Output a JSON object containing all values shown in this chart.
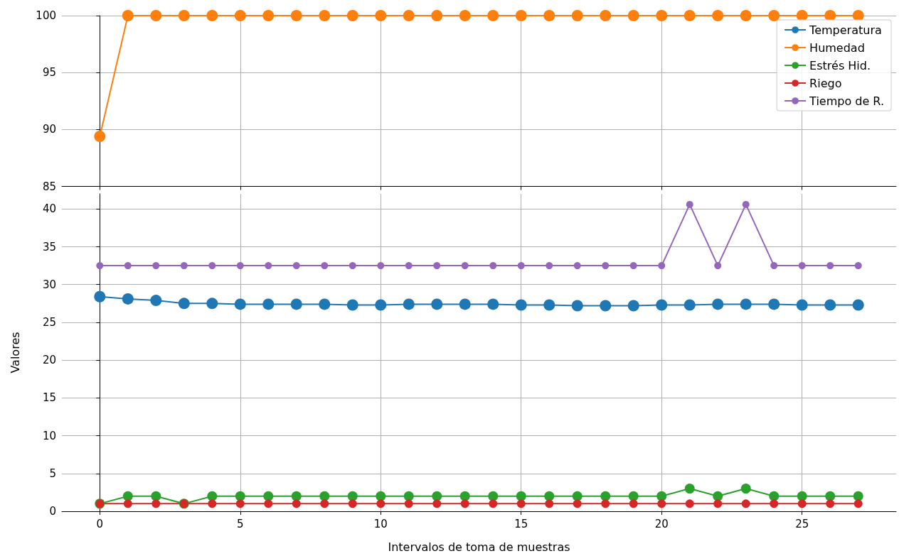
{
  "chart_data": [
    {
      "type": "line",
      "x": [
        0,
        1,
        2,
        3,
        4,
        5,
        6,
        7,
        8,
        9,
        10,
        11,
        12,
        13,
        14,
        15,
        16,
        17,
        18,
        19,
        20,
        21,
        22,
        23,
        24,
        25,
        26,
        27
      ],
      "xlim": [
        -1.35,
        28.35
      ],
      "xticks": [
        0,
        5,
        10,
        15,
        20,
        25
      ],
      "ylim": [
        85,
        100
      ],
      "yticks": [
        85,
        90,
        95,
        100
      ],
      "tick_labels": "y",
      "grid": true,
      "legend": "top right",
      "marker": "circle",
      "series": [
        {
          "name": "Temperatura",
          "color": "#1f77b4",
          "values": [
            null,
            null,
            null,
            null,
            null,
            null,
            null,
            null,
            null,
            null,
            null,
            null,
            null,
            null,
            null,
            null,
            null,
            null,
            null,
            null,
            null,
            null,
            null,
            null,
            null,
            null,
            null,
            null
          ]
        },
        {
          "name": "Humedad",
          "color": "#ff7f0e",
          "values": [
            89.4,
            100,
            100,
            100,
            100,
            100,
            100,
            100,
            100,
            100,
            100,
            100,
            100,
            100,
            100,
            100,
            100,
            100,
            100,
            100,
            100,
            100,
            100,
            100,
            100,
            100,
            100,
            100
          ]
        },
        {
          "name": "Estrés Hid.",
          "color": "#2ca02c",
          "values": [
            null,
            null,
            null,
            null,
            null,
            null,
            null,
            null,
            null,
            null,
            null,
            null,
            null,
            null,
            null,
            null,
            null,
            null,
            null,
            null,
            null,
            null,
            null,
            null,
            null,
            null,
            null,
            null
          ]
        },
        {
          "name": "Riego",
          "color": "#d62728",
          "values": [
            null,
            null,
            null,
            null,
            null,
            null,
            null,
            null,
            null,
            null,
            null,
            null,
            null,
            null,
            null,
            null,
            null,
            null,
            null,
            null,
            null,
            null,
            null,
            null,
            null,
            null,
            null,
            null
          ]
        },
        {
          "name": "Tiempo de R.",
          "color": "#9467bd",
          "values": [
            null,
            null,
            null,
            null,
            null,
            null,
            null,
            null,
            null,
            null,
            null,
            null,
            null,
            null,
            null,
            null,
            null,
            null,
            null,
            null,
            null,
            null,
            null,
            null,
            null,
            null,
            null,
            null
          ]
        }
      ]
    },
    {
      "type": "line",
      "x": [
        0,
        1,
        2,
        3,
        4,
        5,
        6,
        7,
        8,
        9,
        10,
        11,
        12,
        13,
        14,
        15,
        16,
        17,
        18,
        19,
        20,
        21,
        22,
        23,
        24,
        25,
        26,
        27
      ],
      "xlim": [
        -1.35,
        28.35
      ],
      "xticks": [
        0,
        5,
        10,
        15,
        20,
        25
      ],
      "ylim": [
        0,
        42
      ],
      "yticks": [
        0,
        5,
        10,
        15,
        20,
        25,
        30,
        35,
        40
      ],
      "xlabel": "Intervalos de toma de muestras",
      "ylabel": "Valores",
      "grid": true,
      "marker": "circle",
      "series": [
        {
          "color": "#1f77b4",
          "values": [
            28.4,
            28.1,
            27.9,
            27.5,
            27.5,
            27.4,
            27.4,
            27.4,
            27.4,
            27.3,
            27.3,
            27.4,
            27.4,
            27.4,
            27.4,
            27.3,
            27.3,
            27.2,
            27.2,
            27.2,
            27.3,
            27.3,
            27.4,
            27.4,
            27.4,
            27.3,
            27.3,
            27.3
          ]
        },
        {
          "color": "#2ca02c",
          "values": [
            1,
            2,
            2,
            1,
            2,
            2,
            2,
            2,
            2,
            2,
            2,
            2,
            2,
            2,
            2,
            2,
            2,
            2,
            2,
            2,
            2,
            3,
            2,
            3,
            2,
            2,
            2,
            2
          ]
        },
        {
          "color": "#d62728",
          "values": [
            1,
            1,
            1,
            1,
            1,
            1,
            1,
            1,
            1,
            1,
            1,
            1,
            1,
            1,
            1,
            1,
            1,
            1,
            1,
            1,
            1,
            1,
            1,
            1,
            1,
            1,
            1,
            1
          ]
        },
        {
          "color": "#9467bd",
          "values": [
            32.5,
            32.5,
            32.5,
            32.5,
            32.5,
            32.5,
            32.5,
            32.5,
            32.5,
            32.5,
            32.5,
            32.5,
            32.5,
            32.5,
            32.5,
            32.5,
            32.5,
            32.5,
            32.5,
            32.5,
            32.5,
            40.6,
            32.5,
            40.6,
            32.5,
            32.5,
            32.5,
            32.5
          ]
        }
      ]
    }
  ]
}
